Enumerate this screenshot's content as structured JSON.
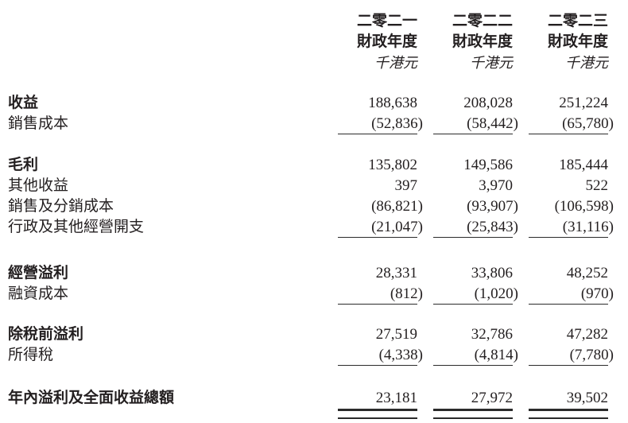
{
  "page": {
    "background_color": "#ffffff",
    "text_color": "#231f20",
    "rule_color": "#2b2b2b"
  },
  "table": {
    "columns": [
      {
        "year": "二零二一",
        "period_label": "財政年度",
        "unit_label": "千港元"
      },
      {
        "year": "二零二二",
        "period_label": "財政年度",
        "unit_label": "千港元"
      },
      {
        "year": "二零二三",
        "period_label": "財政年度",
        "unit_label": "千港元"
      }
    ],
    "rows": [
      {
        "label": "收益",
        "values": [
          "188,638",
          "208,028",
          "251,224"
        ]
      },
      {
        "label": "銷售成本",
        "values": [
          "(52,836)",
          "(58,442)",
          "(65,780)"
        ]
      },
      {
        "label": "毛利",
        "values": [
          "135,802",
          "149,586",
          "185,444"
        ]
      },
      {
        "label": "其他收益",
        "values": [
          "397",
          "3,970",
          "522"
        ]
      },
      {
        "label": "銷售及分銷成本",
        "values": [
          "(86,821)",
          "(93,907)",
          "(106,598)"
        ]
      },
      {
        "label": "行政及其他經營開支",
        "values": [
          "(21,047)",
          "(25,843)",
          "(31,116)"
        ]
      },
      {
        "label": "經營溢利",
        "values": [
          "28,331",
          "33,806",
          "48,252"
        ]
      },
      {
        "label": "融資成本",
        "values": [
          "(812)",
          "(1,020)",
          "(970)"
        ]
      },
      {
        "label": "除稅前溢利",
        "values": [
          "27,519",
          "32,786",
          "47,282"
        ]
      },
      {
        "label": "所得稅",
        "values": [
          "(4,338)",
          "(4,814)",
          "(7,780)"
        ]
      },
      {
        "label": "年內溢利及全面收益總額",
        "values": [
          "23,181",
          "27,972",
          "39,502"
        ]
      }
    ]
  }
}
